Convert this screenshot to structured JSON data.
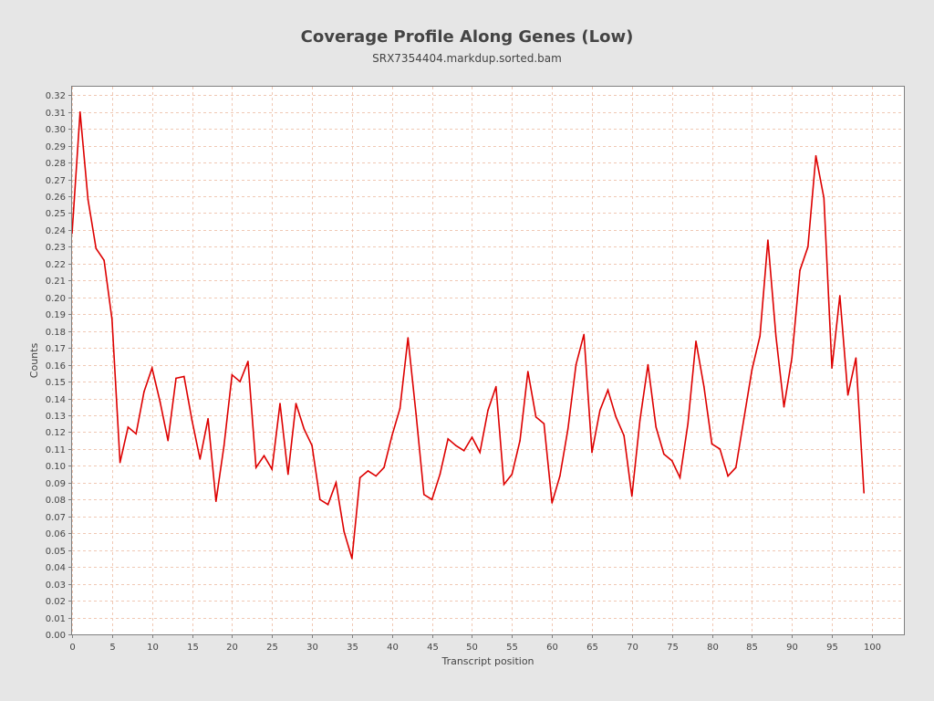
{
  "chart_data": {
    "type": "line",
    "title": "Coverage Profile Along Genes (Low)",
    "subtitle": "SRX7354404.markdup.sorted.bam",
    "xlabel": "Transcript position",
    "ylabel": "Counts",
    "xlim": [
      0,
      104
    ],
    "ylim": [
      0,
      0.325
    ],
    "xticks": [
      0,
      5,
      10,
      15,
      20,
      25,
      30,
      35,
      40,
      45,
      50,
      55,
      60,
      65,
      70,
      75,
      80,
      85,
      90,
      95,
      100
    ],
    "yticks": [
      0.0,
      0.01,
      0.02,
      0.03,
      0.04,
      0.05,
      0.06,
      0.07,
      0.08,
      0.09,
      0.1,
      0.11,
      0.12,
      0.13,
      0.14,
      0.15,
      0.16,
      0.17,
      0.18,
      0.19,
      0.2,
      0.21,
      0.22,
      0.23,
      0.24,
      0.25,
      0.26,
      0.27,
      0.28,
      0.29,
      0.3,
      0.31,
      0.32
    ],
    "grid": true,
    "line_color": "#dd0000",
    "grid_color": "#f0c8b4",
    "series": [
      {
        "x": [
          0,
          1,
          2,
          3,
          4,
          5,
          6,
          7,
          8,
          9,
          10,
          11,
          12,
          13,
          14,
          15,
          16,
          17,
          18,
          19,
          20,
          21,
          22,
          23,
          24,
          25,
          26,
          27,
          28,
          29,
          30,
          31,
          32,
          33,
          34,
          35,
          36,
          37,
          38,
          39,
          40,
          41,
          42,
          43,
          44,
          45,
          46,
          47,
          48,
          49,
          50,
          51,
          52,
          53,
          54,
          55,
          56,
          57,
          58,
          59,
          60,
          61,
          62,
          63,
          64,
          65,
          66,
          67,
          68,
          69,
          70,
          71,
          72,
          73,
          74,
          75,
          76,
          77,
          78,
          79,
          80,
          81,
          82,
          83,
          84,
          85,
          86,
          87,
          88,
          89,
          90,
          91,
          92,
          93,
          94,
          95,
          96,
          97,
          98,
          99
        ],
        "values": [
          0.238,
          0.31,
          0.258,
          0.229,
          0.222,
          0.187,
          0.102,
          0.123,
          0.119,
          0.144,
          0.158,
          0.138,
          0.115,
          0.152,
          0.153,
          0.127,
          0.104,
          0.128,
          0.079,
          0.112,
          0.154,
          0.15,
          0.162,
          0.099,
          0.106,
          0.098,
          0.137,
          0.095,
          0.137,
          0.122,
          0.112,
          0.08,
          0.077,
          0.09,
          0.061,
          0.045,
          0.093,
          0.097,
          0.094,
          0.099,
          0.118,
          0.134,
          0.176,
          0.131,
          0.083,
          0.08,
          0.095,
          0.116,
          0.112,
          0.109,
          0.117,
          0.108,
          0.133,
          0.147,
          0.089,
          0.095,
          0.115,
          0.156,
          0.129,
          0.125,
          0.078,
          0.094,
          0.122,
          0.16,
          0.178,
          0.108,
          0.133,
          0.145,
          0.129,
          0.118,
          0.082,
          0.127,
          0.16,
          0.123,
          0.107,
          0.103,
          0.093,
          0.125,
          0.174,
          0.147,
          0.113,
          0.11,
          0.094,
          0.099,
          0.128,
          0.157,
          0.177,
          0.234,
          0.177,
          0.135,
          0.164,
          0.216,
          0.23,
          0.284,
          0.259,
          0.158,
          0.201,
          0.142,
          0.164,
          0.084
        ]
      }
    ]
  }
}
